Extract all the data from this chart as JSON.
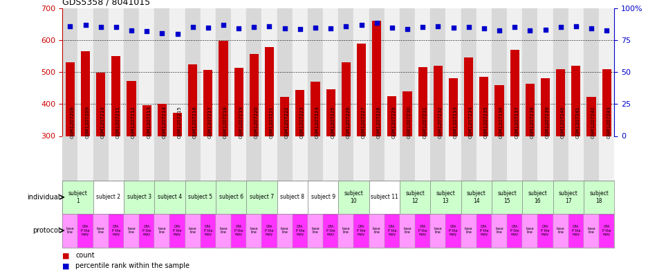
{
  "title": "GDS5358 / 8041015",
  "samples": [
    "GSM1207208",
    "GSM1207209",
    "GSM1207210",
    "GSM1207211",
    "GSM1207212",
    "GSM1207213",
    "GSM1207214",
    "GSM1207215",
    "GSM1207216",
    "GSM1207217",
    "GSM1207218",
    "GSM1207219",
    "GSM1207220",
    "GSM1207221",
    "GSM1207222",
    "GSM1207223",
    "GSM1207224",
    "GSM1207225",
    "GSM1207226",
    "GSM1207227",
    "GSM1207228",
    "GSM1207229",
    "GSM1207230",
    "GSM1207231",
    "GSM1207232",
    "GSM1207233",
    "GSM1207234",
    "GSM1207235",
    "GSM1207236",
    "GSM1207237",
    "GSM1207238",
    "GSM1207239",
    "GSM1207240",
    "GSM1207241",
    "GSM1207242",
    "GSM1207243"
  ],
  "bar_values": [
    530,
    565,
    498,
    550,
    472,
    397,
    400,
    372,
    524,
    506,
    597,
    514,
    556,
    578,
    422,
    443,
    470,
    447,
    530,
    590,
    660,
    425,
    440,
    515,
    520,
    481,
    545,
    485,
    460,
    570,
    464,
    480,
    510,
    520,
    423,
    510
  ],
  "percentile_values": [
    643,
    648,
    640,
    642,
    630,
    627,
    622,
    620,
    641,
    638,
    648,
    637,
    642,
    643,
    637,
    635,
    638,
    636,
    643,
    648,
    655,
    638,
    635,
    641,
    643,
    638,
    642,
    637,
    630,
    642,
    630,
    632,
    641,
    643,
    636,
    631
  ],
  "ylim_left": [
    300,
    700
  ],
  "ylim_right": [
    0,
    100
  ],
  "bar_color": "#cc0000",
  "dot_color": "#0000cc",
  "grid_values": [
    400,
    500,
    600
  ],
  "yticks_left": [
    300,
    400,
    500,
    600,
    700
  ],
  "yticks_right": [
    0,
    25,
    50,
    75,
    100
  ],
  "ytick_right_labels": [
    "0",
    "25",
    "50",
    "75",
    "100%"
  ],
  "individuals": [
    {
      "label": "subject\n1",
      "start": 0,
      "end": 2,
      "color": "#ccffcc"
    },
    {
      "label": "subject 2",
      "start": 2,
      "end": 4,
      "color": "#ffffff"
    },
    {
      "label": "subject 3",
      "start": 4,
      "end": 6,
      "color": "#ccffcc"
    },
    {
      "label": "subject 4",
      "start": 6,
      "end": 8,
      "color": "#ccffcc"
    },
    {
      "label": "subject 5",
      "start": 8,
      "end": 10,
      "color": "#ccffcc"
    },
    {
      "label": "subject 6",
      "start": 10,
      "end": 12,
      "color": "#ccffcc"
    },
    {
      "label": "subject 7",
      "start": 12,
      "end": 14,
      "color": "#ccffcc"
    },
    {
      "label": "subject 8",
      "start": 14,
      "end": 16,
      "color": "#ffffff"
    },
    {
      "label": "subject 9",
      "start": 16,
      "end": 18,
      "color": "#ffffff"
    },
    {
      "label": "subject\n10",
      "start": 18,
      "end": 20,
      "color": "#ccffcc"
    },
    {
      "label": "subject 11",
      "start": 20,
      "end": 22,
      "color": "#ffffff"
    },
    {
      "label": "subject\n12",
      "start": 22,
      "end": 24,
      "color": "#ccffcc"
    },
    {
      "label": "subject\n13",
      "start": 24,
      "end": 26,
      "color": "#ccffcc"
    },
    {
      "label": "subject\n14",
      "start": 26,
      "end": 28,
      "color": "#ccffcc"
    },
    {
      "label": "subject\n15",
      "start": 28,
      "end": 30,
      "color": "#ccffcc"
    },
    {
      "label": "subject\n16",
      "start": 30,
      "end": 32,
      "color": "#ccffcc"
    },
    {
      "label": "subject\n17",
      "start": 32,
      "end": 34,
      "color": "#ccffcc"
    },
    {
      "label": "subject\n18",
      "start": 34,
      "end": 36,
      "color": "#ccffcc"
    }
  ],
  "protocol_labels_even": "base\nline",
  "protocol_labels_odd": "CPA\nP the\nrapy",
  "protocol_color_even": "#ff99ff",
  "protocol_color_odd": "#ff33ff",
  "xlabel_bg_even": "#d8d8d8",
  "xlabel_bg_odd": "#f0f0f0",
  "row_label_individual": "individual",
  "row_label_protocol": "protocol",
  "legend_count_label": "count",
  "legend_percentile_label": "percentile rank within the sample",
  "legend_count_color": "#cc0000",
  "legend_percentile_color": "#0000cc"
}
